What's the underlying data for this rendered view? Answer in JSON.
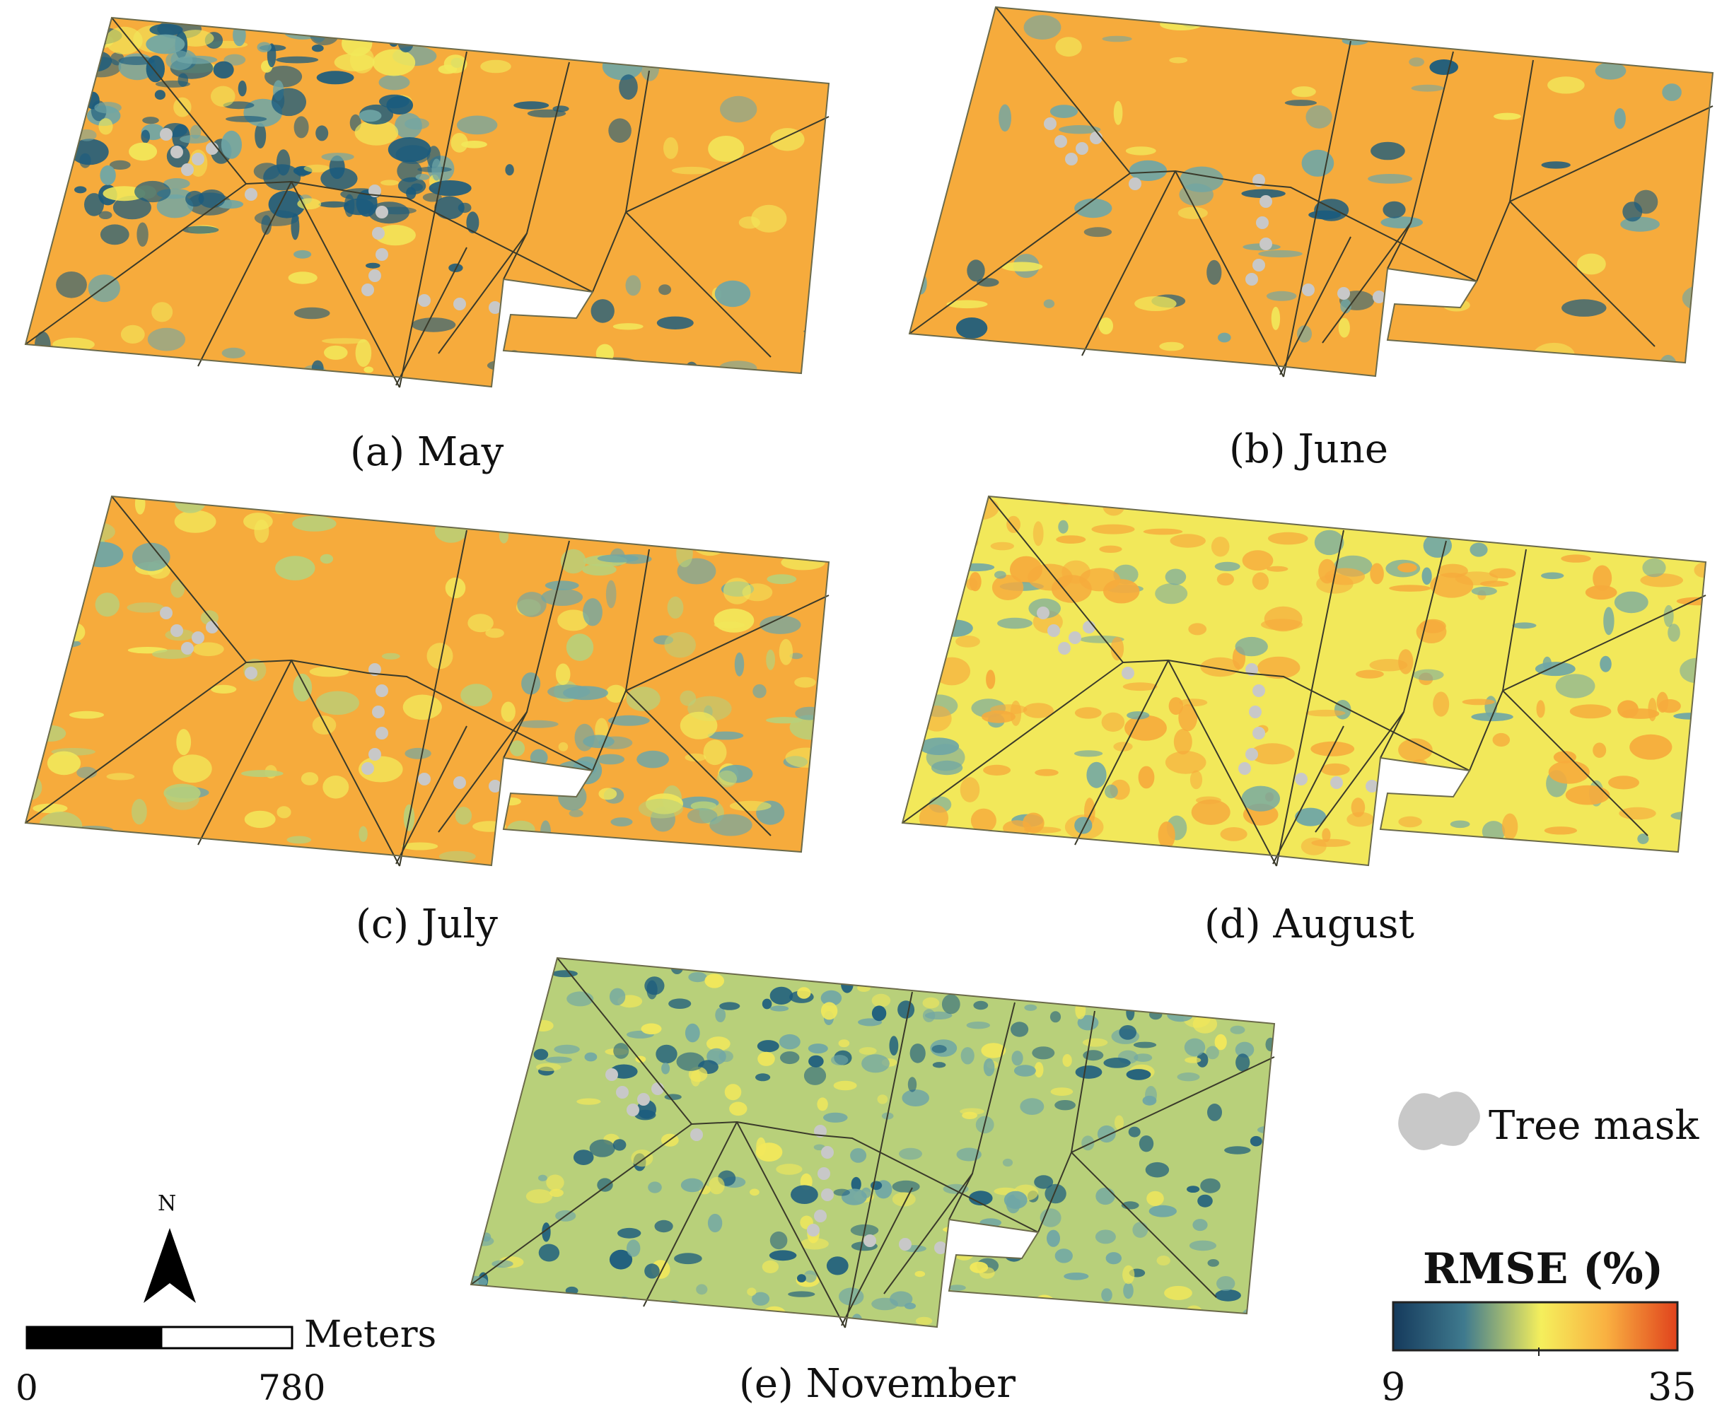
{
  "panels": [
    {
      "id": "a",
      "caption": "(a) May",
      "palette": "may"
    },
    {
      "id": "b",
      "caption": "(b) June",
      "palette": "june"
    },
    {
      "id": "c",
      "caption": "(c) July",
      "palette": "july"
    },
    {
      "id": "d",
      "caption": "(d) August",
      "palette": "august"
    },
    {
      "id": "e",
      "caption": "(e) November",
      "palette": "november"
    }
  ],
  "legend": {
    "tree_mask_label": "Tree mask",
    "tree_mask_color": "#c8c8c8",
    "colorbar_title": "RMSE (%)",
    "colorbar_min": "9",
    "colorbar_max": "35",
    "colorbar_colors": [
      "#153a5c",
      "#3f7a8e",
      "#f5ef5c",
      "#f9b041",
      "#e0421c"
    ]
  },
  "scalebar": {
    "unit": "Meters",
    "label_start": "0",
    "label_end": "780"
  },
  "north_arrow": {
    "label": "N"
  },
  "colors": {
    "dark_blue": "#1a5b7e",
    "teal": "#6fa6a6",
    "light_green": "#b8d07a",
    "yellow": "#f2e85a",
    "orange": "#f6ab3c",
    "tree_gray": "#c8c8c8",
    "field_line": "#3a3a2a"
  }
}
